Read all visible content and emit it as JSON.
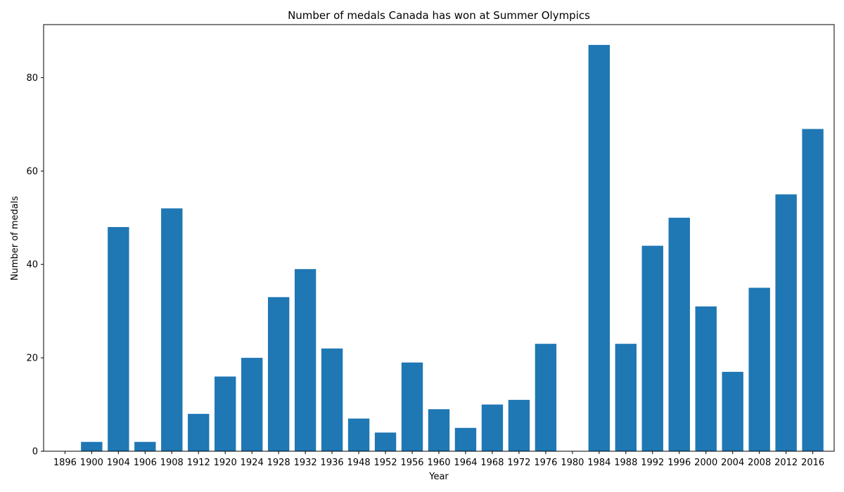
{
  "chart_data": {
    "type": "bar",
    "title": "Number of medals Canada has won at Summer Olympics",
    "xlabel": "Year",
    "ylabel": "Number of medals",
    "categories": [
      "1896",
      "1900",
      "1904",
      "1906",
      "1908",
      "1912",
      "1920",
      "1924",
      "1928",
      "1932",
      "1936",
      "1948",
      "1952",
      "1956",
      "1960",
      "1964",
      "1968",
      "1972",
      "1976",
      "1980",
      "1984",
      "1988",
      "1992",
      "1996",
      "2000",
      "2004",
      "2008",
      "2012",
      "2016"
    ],
    "values": [
      0,
      2,
      48,
      2,
      52,
      8,
      16,
      20,
      33,
      39,
      22,
      7,
      4,
      19,
      9,
      5,
      10,
      11,
      23,
      0,
      87,
      23,
      44,
      50,
      31,
      17,
      35,
      55,
      69
    ],
    "ylim": [
      0,
      91.35
    ],
    "yticks": [
      0,
      20,
      40,
      60,
      80
    ],
    "grid": false,
    "bar_color": "#1f77b4"
  }
}
